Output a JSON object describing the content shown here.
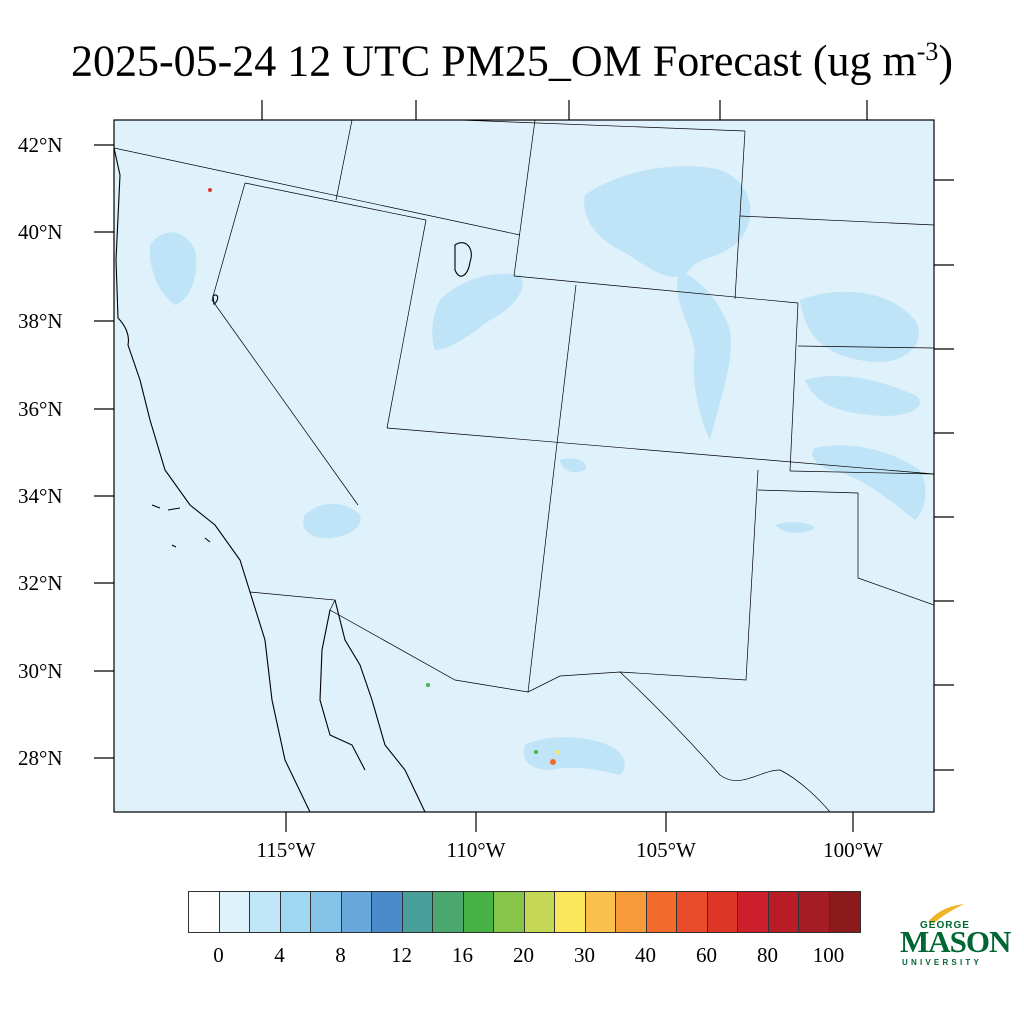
{
  "title": {
    "text": "2025-05-24 12 UTC PM25_OM Forecast (ug m",
    "superscript": "-3",
    "close": ")"
  },
  "map": {
    "lat_labels": [
      "42°N",
      "40°N",
      "38°N",
      "36°N",
      "34°N",
      "32°N",
      "30°N",
      "28°N"
    ],
    "lon_labels": [
      "115°W",
      "110°W",
      "105°W",
      "100°W"
    ],
    "background_color": "#dff1fb",
    "plume_color": "#bfe4f7",
    "boundary_color": "#000000"
  },
  "colorbar": {
    "colors": [
      "#ffffff",
      "#def2fb",
      "#bfe5f7",
      "#9fd7f3",
      "#84c2e8",
      "#69a8db",
      "#4a8bcb",
      "#479e9b",
      "#4aa86e",
      "#47b347",
      "#86c44a",
      "#c4d855",
      "#f9e65a",
      "#f9c04b",
      "#f69a3a",
      "#f26a2c",
      "#e84c2b",
      "#dd3526",
      "#cd1f2b",
      "#b91b27",
      "#a41c24",
      "#8c1a1d"
    ],
    "labels": [
      "0",
      "4",
      "8",
      "12",
      "16",
      "20",
      "30",
      "40",
      "60",
      "80",
      "100"
    ]
  },
  "logo": {
    "george": "GEORGE",
    "mason": "MASON",
    "university": "UNIVERSITY",
    "color": "#006633",
    "accent": "#f0b323"
  }
}
